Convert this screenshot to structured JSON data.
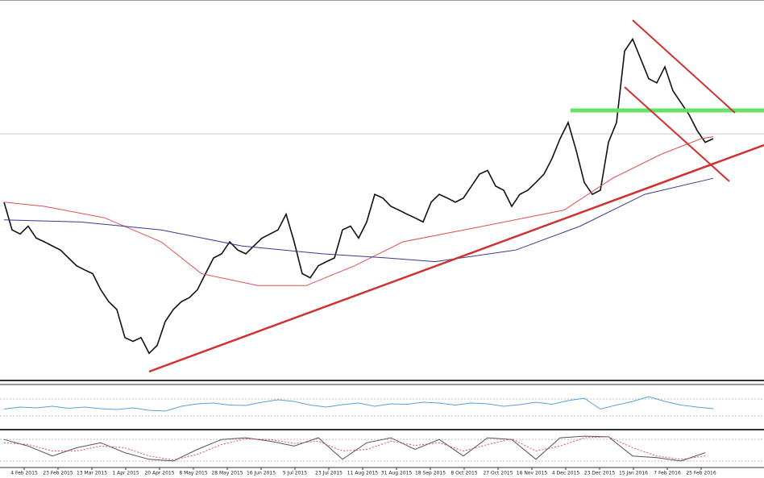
{
  "chart_data": [
    {
      "type": "line",
      "xlim": [
        0,
        94.3
      ],
      "ylim": [
        0,
        100
      ],
      "xticks": [
        {
          "value": 2.5,
          "label": "4 Feb 2015"
        },
        {
          "value": 6.7,
          "label": "23 Feb 2015"
        },
        {
          "value": 10.9,
          "label": "13 Mar 2015"
        },
        {
          "value": 15.1,
          "label": "1 Apr 2015"
        },
        {
          "value": 19.3,
          "label": "20 Apr 2015"
        },
        {
          "value": 23.5,
          "label": "8 May 2015"
        },
        {
          "value": 27.7,
          "label": "28 May 2015"
        },
        {
          "value": 31.9,
          "label": "16 Jun 2015"
        },
        {
          "value": 36.1,
          "label": "5 Jul 2015"
        },
        {
          "value": 40.3,
          "label": "23 Jul 2015"
        },
        {
          "value": 44.5,
          "label": "11 Aug 2015"
        },
        {
          "value": 48.7,
          "label": "31 Aug 2015"
        },
        {
          "value": 52.9,
          "label": "18 Sep 2015"
        },
        {
          "value": 57.1,
          "label": "8 Oct 2015"
        },
        {
          "value": 61.3,
          "label": "27 Oct 2015"
        },
        {
          "value": 65.5,
          "label": "16 Nov 2015"
        },
        {
          "value": 69.7,
          "label": "4 Dec 2015"
        },
        {
          "value": 73.9,
          "label": "23 Dec 2015"
        },
        {
          "value": 78.1,
          "label": "15 Jan 2016"
        },
        {
          "value": 82.3,
          "label": "7 Feb 2016"
        },
        {
          "value": 86.5,
          "label": "25 Feb 2016"
        }
      ],
      "series": [
        {
          "color": "#111111",
          "values": [
            46.8,
            39.4,
            38.3,
            40.4,
            37.2,
            36.2,
            35.1,
            34.0,
            31.9,
            29.8,
            28.7,
            27.7,
            23.4,
            20.2,
            18.1,
            10.6,
            9.6,
            10.6,
            6.4,
            8.5,
            14.9,
            18.1,
            20.2,
            21.3,
            23.4,
            27.7,
            31.9,
            33.0,
            36.2,
            34.0,
            33.0,
            35.1,
            37.2,
            38.3,
            39.4,
            43.6,
            36.2,
            27.7,
            26.6,
            29.8,
            30.9,
            31.9,
            39.4,
            40.4,
            37.2,
            41.5,
            48.9,
            47.9,
            45.7,
            44.7,
            43.6,
            42.6,
            41.5,
            46.8,
            48.9,
            47.9,
            46.8,
            47.9,
            51.1,
            54.3,
            55.3,
            51.1,
            50.0,
            45.7,
            48.9,
            50.0,
            52.1,
            54.3,
            58.5,
            63.8,
            68.1,
            60.6,
            52.1,
            48.9,
            50.0,
            62.8,
            68.1,
            87.2,
            90.4,
            85.1,
            79.8,
            78.7,
            83.0,
            76.6,
            73.4,
            70.2,
            66.0,
            62.8,
            63.8
          ]
        },
        {
          "color": "#e05050",
          "x": [
            0,
            5,
            12.5,
            19.5,
            24.5,
            31.5,
            37.5,
            43.5,
            49.5,
            59.5,
            69.5,
            75.5,
            81.5,
            86.5,
            88
          ],
          "values": [
            46.8,
            45.7,
            42.6,
            36.2,
            27.7,
            24.5,
            24.5,
            29.8,
            36.2,
            40.4,
            44.7,
            53.2,
            59.6,
            63.8,
            64.3
          ]
        },
        {
          "color": "#3a3a8c",
          "x": [
            0,
            9.5,
            19.5,
            29.5,
            39.5,
            47.5,
            53.5,
            63.5,
            71.5,
            79.5,
            88
          ],
          "values": [
            42.1,
            41.5,
            39.4,
            35.1,
            33.0,
            31.9,
            30.9,
            34.0,
            40.4,
            48.9,
            53.2
          ]
        }
      ]
    },
    {
      "type": "line",
      "xlim": [
        0,
        94.3
      ],
      "ylim": [
        0,
        100
      ],
      "series": [
        {
          "color": "#5aa0d8",
          "x": [
            0,
            2,
            4,
            6,
            8,
            10,
            12,
            14,
            16,
            18,
            20,
            22,
            24,
            26,
            28,
            30,
            32,
            34,
            36,
            38,
            40,
            42,
            44,
            46,
            48,
            50,
            52,
            54,
            56,
            58,
            60,
            62,
            64,
            66,
            68,
            70,
            72,
            74,
            76,
            78,
            80,
            82,
            84,
            86,
            88
          ],
          "values": [
            45,
            50,
            48,
            52,
            47,
            50,
            46,
            44,
            48,
            42,
            40,
            52,
            58,
            60,
            55,
            54,
            62,
            68,
            64,
            55,
            50,
            56,
            60,
            52,
            58,
            57,
            62,
            60,
            55,
            60,
            58,
            52,
            56,
            62,
            57,
            66,
            72,
            45,
            55,
            64,
            76,
            64,
            55,
            50,
            46
          ]
        }
      ]
    },
    {
      "type": "line",
      "xlim": [
        0,
        94.3
      ],
      "ylim": [
        0,
        100
      ],
      "series": [
        {
          "color": "#555555",
          "x": [
            0,
            3,
            6,
            9,
            12,
            15,
            18,
            21,
            24,
            27,
            30,
            33,
            36,
            39,
            42,
            45,
            48,
            51,
            54,
            57,
            60,
            63,
            66,
            69,
            72,
            75,
            78,
            81,
            84,
            87
          ],
          "values": [
            80,
            60,
            30,
            55,
            70,
            40,
            20,
            15,
            50,
            80,
            85,
            75,
            60,
            85,
            20,
            70,
            85,
            50,
            80,
            30,
            85,
            80,
            20,
            85,
            90,
            88,
            30,
            25,
            15,
            40
          ]
        },
        {
          "color": "#e05050",
          "dashed": true,
          "x": [
            0,
            3,
            6,
            9,
            12,
            15,
            18,
            21,
            24,
            27,
            30,
            33,
            36,
            39,
            42,
            45,
            48,
            51,
            54,
            57,
            60,
            63,
            66,
            69,
            72,
            75,
            78,
            81,
            84,
            87
          ],
          "values": [
            70,
            65,
            45,
            45,
            60,
            55,
            30,
            18,
            35,
            65,
            82,
            80,
            68,
            75,
            45,
            50,
            75,
            62,
            70,
            45,
            65,
            82,
            45,
            60,
            85,
            88,
            55,
            30,
            20,
            30
          ]
        }
      ]
    }
  ]
}
